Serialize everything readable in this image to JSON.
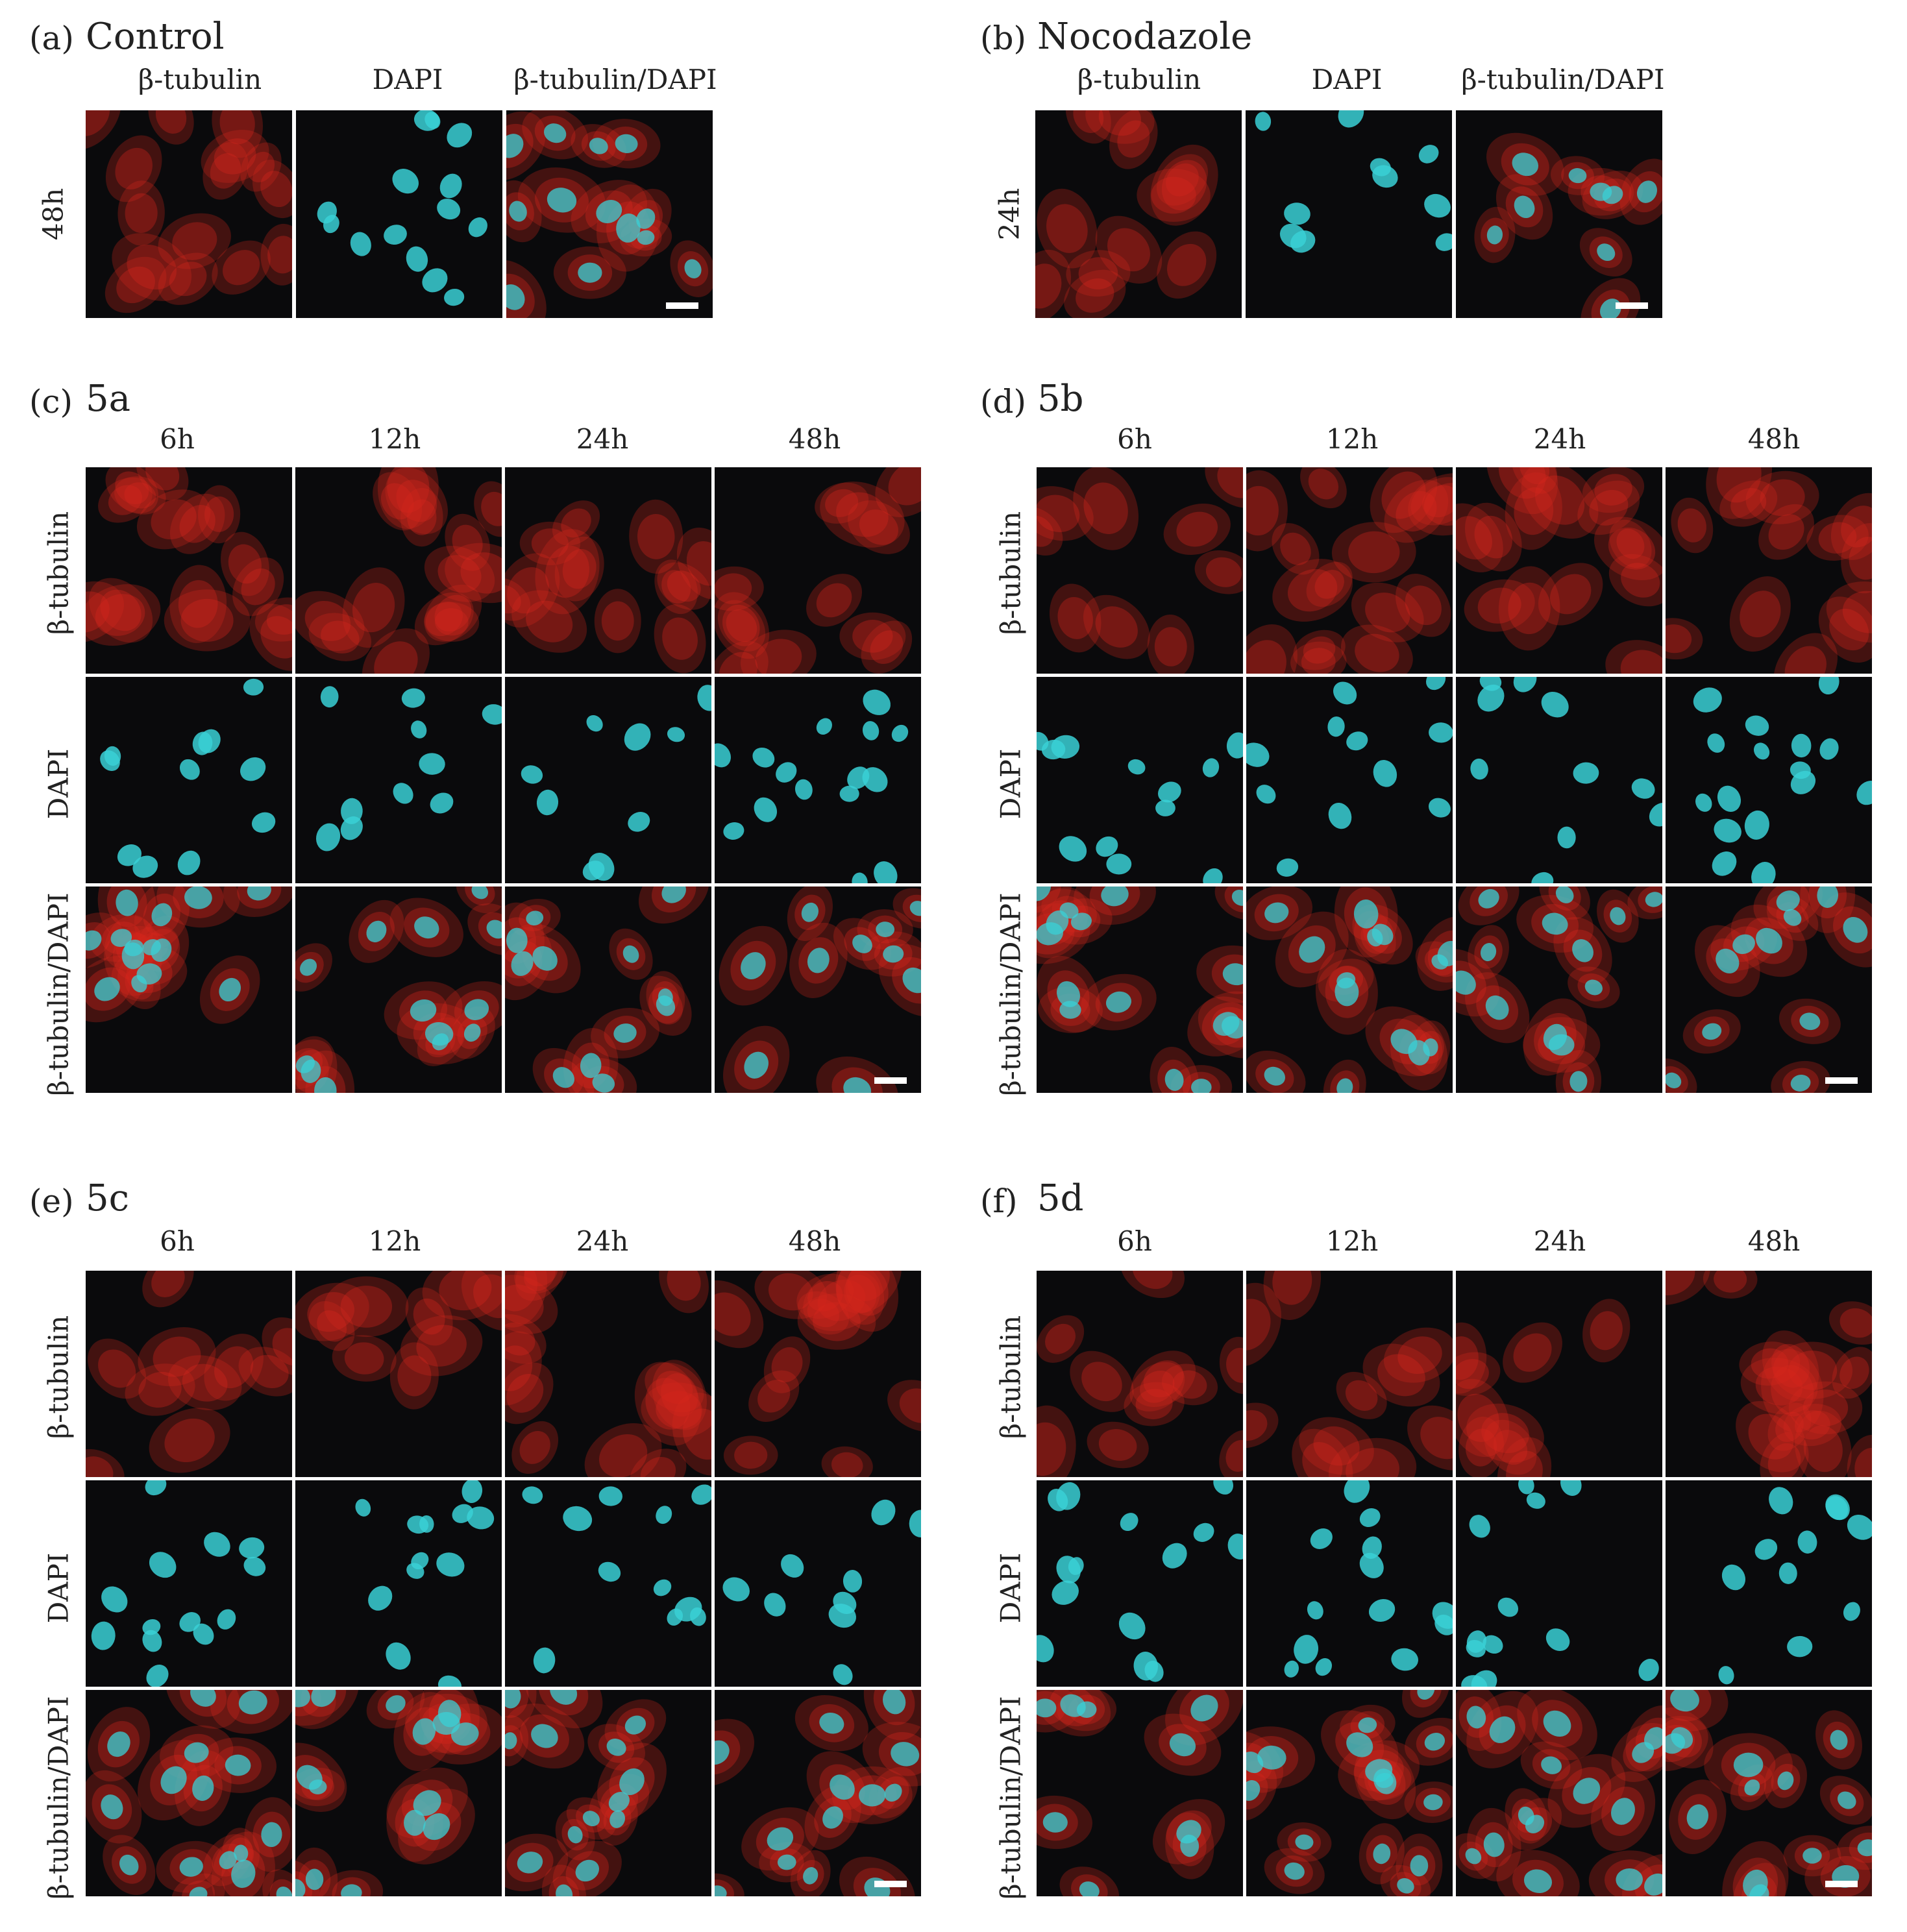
{
  "panels": [
    {
      "letter": "(a)",
      "title": "Control",
      "columns": [
        "β-tubulin",
        "DAPI",
        "β-tubulin/DAPI"
      ],
      "rows": [
        "48h"
      ]
    },
    {
      "letter": "(b)",
      "title": "Nocodazole",
      "columns": [
        "β-tubulin",
        "DAPI",
        "β-tubulin/DAPI"
      ],
      "rows": [
        "24h"
      ]
    },
    {
      "letter": "(c)",
      "title": "5a",
      "columns": [
        "6h",
        "12h",
        "24h",
        "48h"
      ],
      "rows": [
        "β-tubulin",
        "DAPI",
        "β-tubulin/DAPI"
      ]
    },
    {
      "letter": "(d)",
      "title": "5b",
      "columns": [
        "6h",
        "12h",
        "24h",
        "48h"
      ],
      "rows": [
        "β-tubulin",
        "DAPI",
        "β-tubulin/DAPI"
      ]
    },
    {
      "letter": "(e)",
      "title": "5c",
      "columns": [
        "6h",
        "12h",
        "24h",
        "48h"
      ],
      "rows": [
        "β-tubulin",
        "DAPI",
        "β-tubulin/DAPI"
      ]
    },
    {
      "letter": "(f)",
      "title": "5d",
      "columns": [
        "6h",
        "12h",
        "24h",
        "48h"
      ],
      "rows": [
        "β-tubulin",
        "DAPI",
        "β-tubulin/DAPI"
      ]
    }
  ],
  "colors": {
    "tubulin": "#d8261e",
    "dapi": "#3ad0d6",
    "background": "#0a0a0c",
    "scale_bar": "#ffffff",
    "arrow_white": "#ffffff",
    "arrow_yellow": "#f2d21b",
    "arrow_green": "#3db83a",
    "arrow_blue": "#2a9fe0",
    "arrow_orange": "#f0a43a"
  }
}
